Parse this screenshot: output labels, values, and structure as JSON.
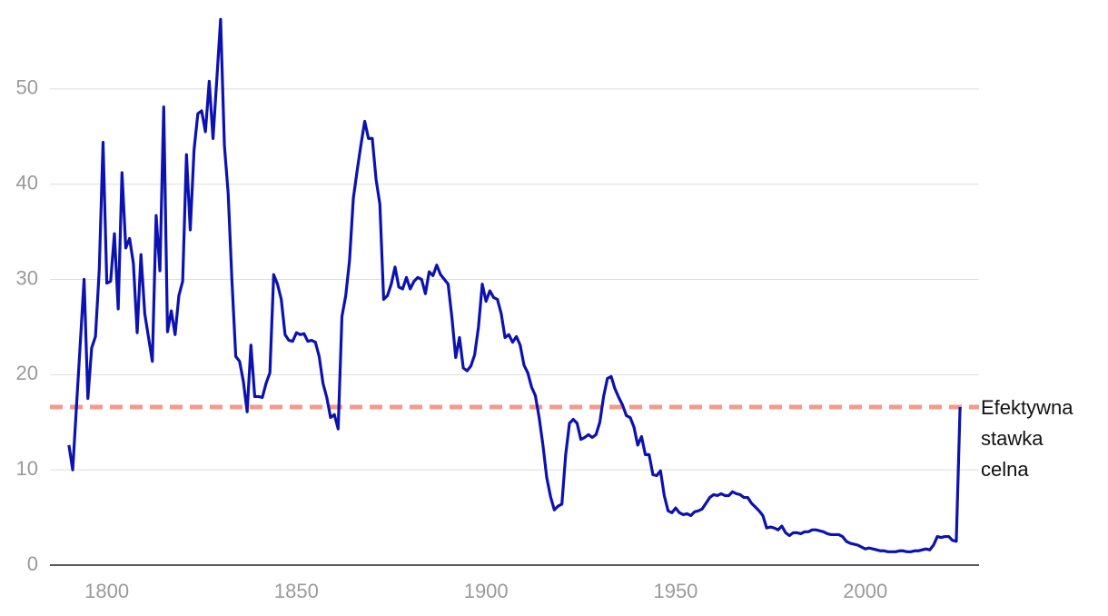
{
  "chart_data": {
    "type": "line",
    "x": [
      1790,
      1791,
      1792,
      1793,
      1794,
      1795,
      1796,
      1797,
      1798,
      1799,
      1800,
      1801,
      1802,
      1803,
      1804,
      1805,
      1806,
      1807,
      1808,
      1809,
      1810,
      1811,
      1812,
      1813,
      1814,
      1815,
      1816,
      1817,
      1818,
      1819,
      1820,
      1821,
      1822,
      1823,
      1824,
      1825,
      1826,
      1827,
      1828,
      1829,
      1830,
      1831,
      1832,
      1833,
      1834,
      1835,
      1836,
      1837,
      1838,
      1839,
      1840,
      1841,
      1842,
      1843,
      1844,
      1845,
      1846,
      1847,
      1848,
      1849,
      1850,
      1851,
      1852,
      1853,
      1854,
      1855,
      1856,
      1857,
      1858,
      1859,
      1860,
      1861,
      1862,
      1863,
      1864,
      1865,
      1866,
      1867,
      1868,
      1869,
      1870,
      1871,
      1872,
      1873,
      1874,
      1875,
      1876,
      1877,
      1878,
      1879,
      1880,
      1881,
      1882,
      1883,
      1884,
      1885,
      1886,
      1887,
      1888,
      1889,
      1890,
      1891,
      1892,
      1893,
      1894,
      1895,
      1896,
      1897,
      1898,
      1899,
      1900,
      1901,
      1902,
      1903,
      1904,
      1905,
      1906,
      1907,
      1908,
      1909,
      1910,
      1911,
      1912,
      1913,
      1914,
      1915,
      1916,
      1917,
      1918,
      1919,
      1920,
      1921,
      1922,
      1923,
      1924,
      1925,
      1926,
      1927,
      1928,
      1929,
      1930,
      1931,
      1932,
      1933,
      1934,
      1935,
      1936,
      1937,
      1938,
      1939,
      1940,
      1941,
      1942,
      1943,
      1944,
      1945,
      1946,
      1947,
      1948,
      1949,
      1950,
      1951,
      1952,
      1953,
      1954,
      1955,
      1956,
      1957,
      1958,
      1959,
      1960,
      1961,
      1962,
      1963,
      1964,
      1965,
      1966,
      1967,
      1968,
      1969,
      1970,
      1971,
      1972,
      1973,
      1974,
      1975,
      1976,
      1977,
      1978,
      1979,
      1980,
      1981,
      1982,
      1983,
      1984,
      1985,
      1986,
      1987,
      1988,
      1989,
      1990,
      1991,
      1992,
      1993,
      1994,
      1995,
      1996,
      1997,
      1998,
      1999,
      2000,
      2001,
      2002,
      2003,
      2004,
      2005,
      2006,
      2007,
      2008,
      2009,
      2010,
      2011,
      2012,
      2013,
      2014,
      2015,
      2016,
      2017,
      2018,
      2019,
      2020,
      2021,
      2022,
      2023,
      2024,
      2025
    ],
    "values": [
      12.6,
      10.0,
      16.7,
      23.3,
      30.0,
      17.5,
      22.8,
      24.0,
      31.0,
      44.4,
      29.6,
      29.8,
      34.8,
      26.9,
      41.2,
      33.3,
      34.3,
      31.7,
      24.4,
      32.6,
      26.4,
      23.9,
      21.4,
      36.7,
      30.9,
      48.1,
      24.5,
      26.7,
      24.2,
      28.3,
      29.8,
      43.1,
      35.2,
      43.6,
      47.4,
      47.7,
      45.5,
      50.8,
      44.8,
      51.0,
      57.3,
      44.1,
      39.0,
      29.8,
      21.9,
      21.4,
      19.3,
      16.1,
      23.1,
      17.7,
      17.7,
      17.6,
      19.1,
      20.2,
      30.5,
      29.5,
      27.9,
      24.2,
      23.6,
      23.5,
      24.4,
      24.2,
      24.3,
      23.5,
      23.6,
      23.4,
      21.9,
      19.1,
      17.6,
      15.5,
      15.8,
      14.3,
      26.1,
      28.3,
      32.0,
      38.5,
      41.4,
      44.1,
      46.6,
      44.8,
      44.8,
      40.5,
      37.9,
      27.9,
      28.3,
      29.5,
      31.3,
      29.2,
      29.0,
      30.2,
      29.0,
      29.8,
      30.2,
      30.0,
      28.5,
      30.8,
      30.4,
      31.5,
      30.5,
      30.0,
      29.5,
      26.0,
      21.8,
      23.9,
      20.7,
      20.4,
      20.9,
      22.1,
      25.0,
      29.5,
      27.7,
      28.8,
      28.1,
      27.9,
      26.4,
      23.9,
      24.2,
      23.4,
      24.0,
      23.1,
      21.0,
      20.2,
      18.7,
      17.8,
      15.5,
      12.6,
      9.2,
      7.2,
      5.8,
      6.2,
      6.4,
      11.6,
      14.9,
      15.3,
      14.9,
      13.2,
      13.4,
      13.7,
      13.4,
      13.7,
      15.0,
      17.7,
      19.6,
      19.8,
      18.5,
      17.6,
      16.8,
      15.7,
      15.5,
      14.5,
      12.6,
      13.5,
      11.6,
      11.6,
      9.5,
      9.4,
      9.9,
      7.3,
      5.7,
      5.5,
      6.0,
      5.5,
      5.3,
      5.4,
      5.2,
      5.6,
      5.7,
      5.9,
      6.5,
      7.1,
      7.4,
      7.3,
      7.5,
      7.3,
      7.3,
      7.7,
      7.5,
      7.4,
      7.1,
      7.1,
      6.5,
      6.1,
      5.7,
      5.2,
      3.9,
      4.0,
      3.9,
      3.7,
      4.1,
      3.4,
      3.1,
      3.4,
      3.4,
      3.3,
      3.5,
      3.5,
      3.7,
      3.7,
      3.6,
      3.5,
      3.3,
      3.2,
      3.2,
      3.2,
      3.0,
      2.5,
      2.3,
      2.2,
      2.1,
      1.9,
      1.7,
      1.8,
      1.7,
      1.6,
      1.5,
      1.5,
      1.4,
      1.4,
      1.4,
      1.5,
      1.5,
      1.4,
      1.4,
      1.5,
      1.5,
      1.6,
      1.7,
      1.6,
      2.1,
      3.0,
      2.9,
      3.0,
      3.0,
      2.6,
      2.5,
      16.6
    ],
    "color": "#0c12b0",
    "xlim": [
      1785,
      2030
    ],
    "xticks": [
      1800,
      1850,
      1900,
      1950,
      2000
    ],
    "ylim": [
      0,
      58
    ],
    "yticks": [
      0,
      10,
      20,
      30,
      40,
      50
    ],
    "grid": true,
    "reference_line": {
      "value": 16.6,
      "color": "#f4998c",
      "label": [
        "Efektywna",
        "stawka",
        "celna"
      ]
    }
  }
}
